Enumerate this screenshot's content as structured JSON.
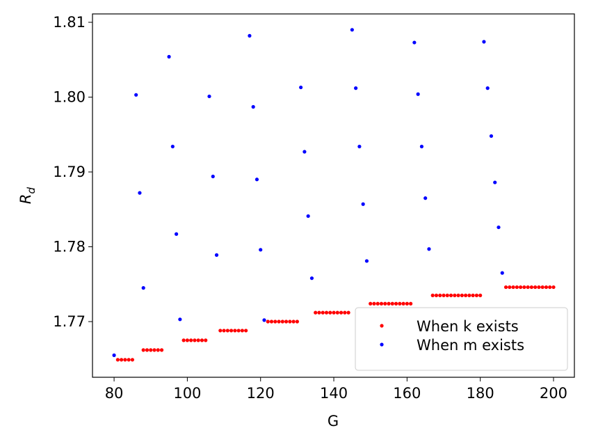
{
  "chart_data": {
    "type": "scatter",
    "xlabel": "G",
    "ylabel": {
      "text": "R",
      "subscript": "d"
    },
    "xlim": [
      74.1,
      205.7
    ],
    "ylim": [
      1.76256,
      1.81112
    ],
    "xticks": [
      80,
      100,
      120,
      140,
      160,
      180,
      200
    ],
    "yticks": [
      1.77,
      1.78,
      1.79,
      {
        "value": 1.8,
        "label": "1.80"
      },
      1.81
    ],
    "legend": "lower right",
    "series": [
      {
        "name": "When k exists",
        "color": "#ff0000",
        "x": [
          81,
          82,
          83,
          84,
          85,
          88,
          89,
          90,
          91,
          92,
          93,
          99,
          100,
          101,
          102,
          103,
          104,
          105,
          109,
          110,
          111,
          112,
          113,
          114,
          115,
          116,
          122,
          123,
          124,
          125,
          126,
          127,
          128,
          129,
          130,
          135,
          136,
          137,
          138,
          139,
          140,
          141,
          142,
          143,
          144,
          150,
          151,
          152,
          153,
          154,
          155,
          156,
          157,
          158,
          159,
          160,
          161,
          167,
          168,
          169,
          170,
          171,
          172,
          173,
          174,
          175,
          176,
          177,
          178,
          179,
          180,
          187,
          188,
          189,
          190,
          191,
          192,
          193,
          194,
          195,
          196,
          197,
          198,
          199,
          200
        ],
        "values": [
          1.7649,
          1.7649,
          1.7649,
          1.7649,
          1.7649,
          1.7662,
          1.7662,
          1.7662,
          1.7662,
          1.7662,
          1.7662,
          1.7675,
          1.7675,
          1.7675,
          1.7675,
          1.7675,
          1.7675,
          1.7675,
          1.7688,
          1.7688,
          1.7688,
          1.7688,
          1.7688,
          1.7688,
          1.7688,
          1.7688,
          1.77,
          1.77,
          1.77,
          1.77,
          1.77,
          1.77,
          1.77,
          1.77,
          1.77,
          1.7712,
          1.7712,
          1.7712,
          1.7712,
          1.7712,
          1.7712,
          1.7712,
          1.7712,
          1.7712,
          1.7712,
          1.7724,
          1.7724,
          1.7724,
          1.7724,
          1.7724,
          1.7724,
          1.7724,
          1.7724,
          1.7724,
          1.7724,
          1.7724,
          1.7724,
          1.7735,
          1.7735,
          1.7735,
          1.7735,
          1.7735,
          1.7735,
          1.7735,
          1.7735,
          1.7735,
          1.7735,
          1.7735,
          1.7735,
          1.7735,
          1.7735,
          1.7746,
          1.7746,
          1.7746,
          1.7746,
          1.7746,
          1.7746,
          1.7746,
          1.7746,
          1.7746,
          1.7746,
          1.7746,
          1.7746,
          1.7746,
          1.7746
        ]
      },
      {
        "name": "When m exists",
        "color": "#0000ff",
        "x": [
          80,
          86,
          87,
          88,
          95,
          96,
          97,
          98,
          106,
          107,
          108,
          117,
          118,
          119,
          120,
          121,
          131,
          132,
          133,
          134,
          145,
          146,
          147,
          148,
          149,
          162,
          163,
          164,
          165,
          166,
          181,
          182,
          183,
          184,
          185,
          186
        ],
        "values": [
          1.7655,
          1.8003,
          1.7872,
          1.7745,
          1.8054,
          1.7934,
          1.7817,
          1.7703,
          1.8001,
          1.7894,
          1.7789,
          1.8082,
          1.7987,
          1.789,
          1.7796,
          1.7702,
          1.8013,
          1.7927,
          1.7841,
          1.7758,
          1.809,
          1.8012,
          1.7934,
          1.7857,
          1.7781,
          1.8073,
          1.8004,
          1.7934,
          1.7865,
          1.7797,
          1.8074,
          1.8012,
          1.7948,
          1.7886,
          1.7826,
          1.7765
        ]
      }
    ]
  }
}
